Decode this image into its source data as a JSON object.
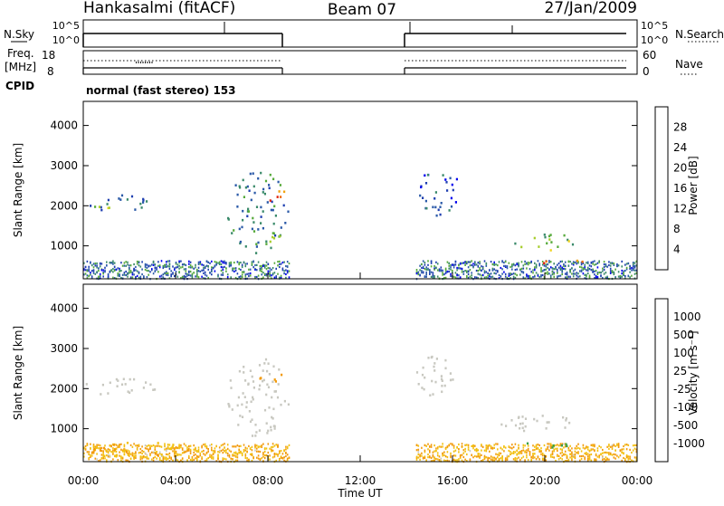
{
  "header": {
    "station": "Hankasalmi (fitACF)",
    "beam": "Beam 07",
    "date": "27/Jan/2009"
  },
  "panel_labels": {
    "nsky": "N.Sky",
    "nsearch": "N.Search",
    "freq_line1": "Freq.",
    "freq_line2": "[MHz]",
    "nave": "Nave",
    "cpid": "CPID",
    "cpid_value": "normal (fast stereo) 153",
    "nsky_ticks": [
      "10^5",
      "10^0"
    ],
    "freq_ticks_left": [
      "18",
      "8"
    ],
    "freq_ticks_right": [
      "60",
      "0"
    ]
  },
  "colorbars": {
    "power": {
      "label": "Power [dB]",
      "ticks": [
        "28",
        "24",
        "20",
        "16",
        "12",
        "8",
        "4"
      ],
      "colors": [
        "#0000ee",
        "#1f3fb0",
        "#2b5aa8",
        "#3a8a6a",
        "#56aa3a",
        "#a6cc2a",
        "#f0d21a",
        "#f2a20c",
        "#ee6a08",
        "#e02008"
      ]
    },
    "velocity": {
      "label": "Velocity [m s⁻¹]",
      "ticks": [
        "1000",
        "500",
        "100",
        "25",
        "-25",
        "-100",
        "-500",
        "-1000"
      ],
      "colors": [
        "#1f3fb0",
        "#2b6aa8",
        "#3aa04a",
        "#66cc33",
        "#c8c8c0",
        "#c8c8c0",
        "#f2c010",
        "#f29a0a",
        "#ee6008",
        "#e81a08"
      ]
    }
  },
  "axes": {
    "ylabel": "Slant Range [km]",
    "xlabel": "Time UT",
    "y_ticks": [
      "4000",
      "3000",
      "2000",
      "1000"
    ],
    "x_ticks": [
      "00:00",
      "04:00",
      "08:00",
      "12:00",
      "16:00",
      "20:00",
      "00:00"
    ]
  },
  "chart_data": [
    {
      "type": "heatmap",
      "name": "power",
      "xlim": [
        0,
        24
      ],
      "ylim": [
        180,
        4600
      ],
      "x_unit": "hours UT",
      "gaps": [
        [
          8.9,
          14.4
        ]
      ],
      "blobs": [
        {
          "x": [
            0.0,
            3.0
          ],
          "y": [
            1850,
            2300
          ],
          "value": 8
        },
        {
          "x": [
            0.6,
            2.0
          ],
          "y": [
            1950,
            2100
          ],
          "value": 16
        },
        {
          "x": [
            6.2,
            8.9
          ],
          "y": [
            800,
            2900
          ],
          "value": 10
        },
        {
          "x": [
            7.6,
            8.8
          ],
          "y": [
            2150,
            2450
          ],
          "value": 28
        },
        {
          "x": [
            7.0,
            8.6
          ],
          "y": [
            1050,
            1400
          ],
          "value": 16
        },
        {
          "x": [
            14.4,
            16.4
          ],
          "y": [
            1750,
            3000
          ],
          "value": 6
        },
        {
          "x": [
            18.6,
            21.4
          ],
          "y": [
            900,
            1350
          ],
          "value": 16
        },
        {
          "x": [
            19.8,
            21.6
          ],
          "y": [
            550,
            700
          ],
          "value": 28
        }
      ]
    },
    {
      "type": "heatmap",
      "name": "velocity",
      "xlim": [
        0,
        24
      ],
      "ylim": [
        180,
        4600
      ],
      "x_unit": "hours UT",
      "gaps": [
        [
          8.9,
          14.4
        ]
      ],
      "blobs": [
        {
          "x": [
            0.0,
            3.2
          ],
          "y": [
            1850,
            2300
          ],
          "value": 0
        },
        {
          "x": [
            6.2,
            8.9
          ],
          "y": [
            800,
            2800
          ],
          "value": 0
        },
        {
          "x": [
            7.6,
            8.8
          ],
          "y": [
            2150,
            2450
          ],
          "value": -300
        },
        {
          "x": [
            0.0,
            5.0
          ],
          "y": [
            300,
            700
          ],
          "value": -100
        },
        {
          "x": [
            14.4,
            16.0
          ],
          "y": [
            1700,
            3000
          ],
          "value": 0
        },
        {
          "x": [
            18.0,
            21.4
          ],
          "y": [
            900,
            1400
          ],
          "value": 0
        },
        {
          "x": [
            18.8,
            21.6
          ],
          "y": [
            550,
            700
          ],
          "value": 150
        }
      ]
    }
  ]
}
